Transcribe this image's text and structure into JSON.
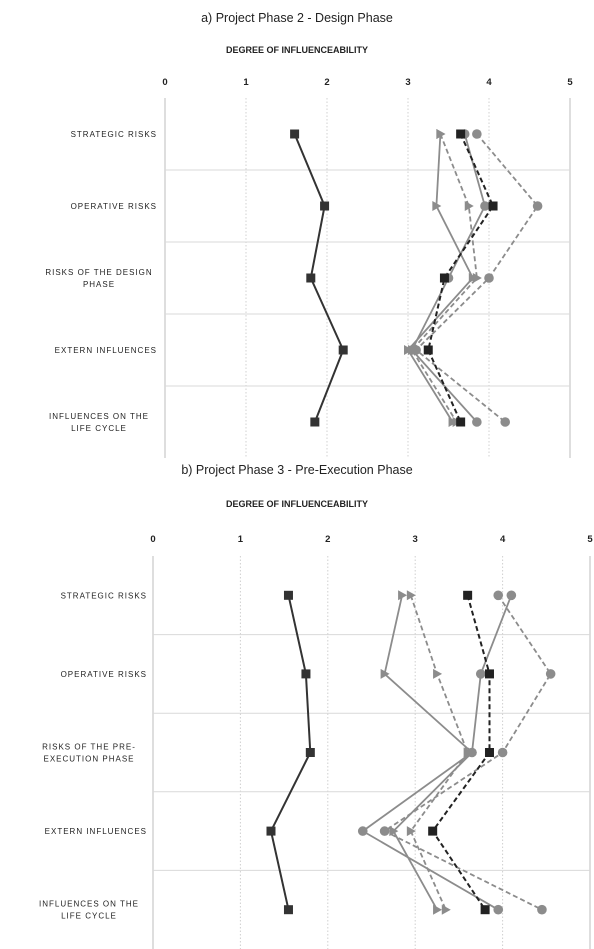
{
  "chart_data": [
    {
      "type": "line",
      "title": "a) Project Phase  2 - Design Phase",
      "xlabel": "DEGREE OF INFLUENCEABILITY",
      "xlim": [
        0,
        5
      ],
      "xticks": [
        "0",
        "1",
        "2",
        "3",
        "4",
        "5"
      ],
      "categories": [
        [
          "STRATEGIC RISKS"
        ],
        [
          "OPERATIVE RISKS"
        ],
        [
          "RISKS OF THE DESIGN",
          "PHASE"
        ],
        [
          "EXTERN INFLUENCES"
        ],
        [
          "INFLUENCES ON THE",
          "LIFE CYCLE"
        ]
      ],
      "grid": true,
      "series": [
        {
          "color": "#333333",
          "dash": "solid",
          "marker": "square",
          "values": [
            1.6,
            1.97,
            1.8,
            2.2,
            1.85
          ]
        },
        {
          "color": "#222222",
          "dash": "dashed",
          "marker": "square",
          "values": [
            3.65,
            4.05,
            3.45,
            3.25,
            3.65
          ]
        },
        {
          "color": "#8c8c8c",
          "dash": "solid",
          "marker": "triangle",
          "values": [
            3.4,
            3.35,
            3.8,
            3.0,
            3.55
          ]
        },
        {
          "color": "#8c8c8c",
          "dash": "dashed",
          "marker": "triangle",
          "values": [
            3.4,
            3.75,
            3.85,
            3.05,
            3.6
          ]
        },
        {
          "color": "#8c8c8c",
          "dash": "solid",
          "marker": "circle",
          "values": [
            3.7,
            3.95,
            3.5,
            3.05,
            3.85
          ]
        },
        {
          "color": "#8c8c8c",
          "dash": "dashed",
          "marker": "circle",
          "values": [
            3.85,
            4.6,
            4.0,
            3.1,
            4.2
          ]
        }
      ]
    },
    {
      "type": "line",
      "title": "b) Project Phase  3 - Pre-Execution Phase",
      "xlabel": "DEGREE OF INFLUENCEABILITY",
      "xlim": [
        0,
        5
      ],
      "xticks": [
        "0",
        "1",
        "2",
        "3",
        "4",
        "5"
      ],
      "categories": [
        [
          "STRATEGIC RISKS"
        ],
        [
          "OPERATIVE RISKS"
        ],
        [
          "RISKS OF THE PRE-",
          "EXECUTION PHASE"
        ],
        [
          "EXTERN INFLUENCES"
        ],
        [
          "INFLUENCES ON THE",
          "LIFE CYCLE"
        ]
      ],
      "grid": true,
      "series": [
        {
          "color": "#333333",
          "dash": "solid",
          "marker": "square",
          "values": [
            1.55,
            1.75,
            1.8,
            1.35,
            1.55
          ]
        },
        {
          "color": "#222222",
          "dash": "dashed",
          "marker": "square",
          "values": [
            3.6,
            3.85,
            3.85,
            3.2,
            3.8
          ]
        },
        {
          "color": "#8c8c8c",
          "dash": "solid",
          "marker": "triangle",
          "values": [
            2.85,
            2.65,
            3.65,
            2.75,
            3.25
          ]
        },
        {
          "color": "#8c8c8c",
          "dash": "dashed",
          "marker": "triangle",
          "values": [
            2.95,
            3.25,
            3.6,
            2.95,
            3.35
          ]
        },
        {
          "color": "#8c8c8c",
          "dash": "solid",
          "marker": "circle",
          "values": [
            4.1,
            3.75,
            3.65,
            2.4,
            3.95
          ]
        },
        {
          "color": "#8c8c8c",
          "dash": "dashed",
          "marker": "circle",
          "values": [
            3.95,
            4.55,
            4.0,
            2.65,
            4.45
          ]
        }
      ]
    }
  ]
}
